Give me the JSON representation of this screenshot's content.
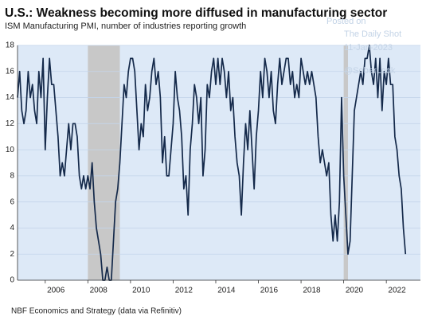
{
  "chart_data": {
    "type": "line",
    "title": "U.S.: Weakness becoming more diffused in manufacturing sector",
    "subtitle": "ISM Manufacturing PMI, number of industries reporting growth",
    "source": "NBF Economics and Strategy (data via Refinitiv)",
    "watermark": [
      "Posted on",
      "The Daily Shot",
      "11-Jan-2023",
      "@SoberLook"
    ],
    "color": "#14294a",
    "shade_color": "#c8c8c8",
    "shaded_periods": [
      [
        2008.0,
        2009.5
      ],
      [
        2020.0,
        2020.2
      ]
    ],
    "x": [
      2004.7,
      2004.8,
      2004.9,
      2005.0,
      2005.1,
      2005.2,
      2005.3,
      2005.4,
      2005.5,
      2005.6,
      2005.7,
      2005.8,
      2005.9,
      2006.0,
      2006.1,
      2006.2,
      2006.3,
      2006.4,
      2006.5,
      2006.6,
      2006.7,
      2006.8,
      2006.9,
      2007.0,
      2007.1,
      2007.2,
      2007.3,
      2007.4,
      2007.5,
      2007.6,
      2007.7,
      2007.8,
      2007.9,
      2008.0,
      2008.1,
      2008.2,
      2008.3,
      2008.4,
      2008.5,
      2008.6,
      2008.7,
      2008.8,
      2008.9,
      2009.0,
      2009.1,
      2009.2,
      2009.3,
      2009.4,
      2009.5,
      2009.6,
      2009.7,
      2009.8,
      2009.9,
      2010.0,
      2010.1,
      2010.2,
      2010.3,
      2010.4,
      2010.5,
      2010.6,
      2010.7,
      2010.8,
      2010.9,
      2011.0,
      2011.1,
      2011.2,
      2011.3,
      2011.4,
      2011.5,
      2011.6,
      2011.7,
      2011.8,
      2011.9,
      2012.0,
      2012.1,
      2012.2,
      2012.3,
      2012.4,
      2012.5,
      2012.6,
      2012.7,
      2012.8,
      2012.9,
      2013.0,
      2013.1,
      2013.2,
      2013.3,
      2013.4,
      2013.5,
      2013.6,
      2013.7,
      2013.8,
      2013.9,
      2014.0,
      2014.1,
      2014.2,
      2014.3,
      2014.4,
      2014.5,
      2014.6,
      2014.7,
      2014.8,
      2014.9,
      2015.0,
      2015.1,
      2015.2,
      2015.3,
      2015.4,
      2015.5,
      2015.6,
      2015.7,
      2015.8,
      2015.9,
      2016.0,
      2016.1,
      2016.2,
      2016.3,
      2016.4,
      2016.5,
      2016.6,
      2016.7,
      2016.8,
      2016.9,
      2017.0,
      2017.1,
      2017.2,
      2017.3,
      2017.4,
      2017.5,
      2017.6,
      2017.7,
      2017.8,
      2017.9,
      2018.0,
      2018.1,
      2018.2,
      2018.3,
      2018.4,
      2018.5,
      2018.6,
      2018.7,
      2018.8,
      2018.9,
      2019.0,
      2019.1,
      2019.2,
      2019.3,
      2019.4,
      2019.5,
      2019.6,
      2019.7,
      2019.8,
      2019.9,
      2020.0,
      2020.1,
      2020.2,
      2020.3,
      2020.4,
      2020.5,
      2020.6,
      2020.7,
      2020.8,
      2020.9,
      2021.0,
      2021.1,
      2021.2,
      2021.3,
      2021.4,
      2021.5,
      2021.6,
      2021.7,
      2021.8,
      2021.9,
      2022.0,
      2022.1,
      2022.2,
      2022.3,
      2022.4,
      2022.5,
      2022.6,
      2022.7,
      2022.8,
      2022.9
    ],
    "values": [
      14,
      16,
      13,
      12,
      13,
      16,
      14,
      15,
      13,
      12,
      16,
      14,
      17,
      10,
      14,
      17,
      15,
      15,
      13,
      11,
      8,
      9,
      8,
      10,
      12,
      10,
      12,
      12,
      11,
      8,
      7,
      8,
      7,
      8,
      7,
      9,
      6,
      4,
      3,
      2,
      0,
      0,
      1,
      0,
      0,
      3,
      6,
      7,
      9,
      12,
      15,
      14,
      16,
      17,
      17,
      16,
      13,
      10,
      12,
      11,
      15,
      13,
      14,
      16,
      17,
      15,
      16,
      14,
      9,
      11,
      8,
      8,
      10,
      12,
      16,
      14,
      13,
      11,
      7,
      8,
      5,
      10,
      12,
      15,
      14,
      12,
      14,
      8,
      10,
      15,
      14,
      16,
      17,
      15,
      17,
      15,
      17,
      16,
      14,
      16,
      13,
      14,
      11,
      9,
      8,
      5,
      9,
      12,
      10,
      13,
      10,
      7,
      11,
      13,
      16,
      14,
      17,
      16,
      14,
      16,
      13,
      12,
      15,
      17,
      15,
      16,
      17,
      17,
      15,
      16,
      14,
      15,
      14,
      17,
      16,
      15,
      16,
      15,
      16,
      15,
      14,
      11,
      9,
      10,
      9,
      8,
      9,
      5,
      3,
      5,
      3,
      6,
      14,
      8,
      5,
      2,
      3,
      8,
      13,
      14,
      15,
      16,
      15,
      17,
      17,
      18,
      16,
      15,
      17,
      14,
      17,
      13,
      16,
      15,
      17,
      15,
      15,
      11,
      10,
      8,
      7,
      4,
      2
    ],
    "xlim": [
      2004.7,
      2023.6
    ],
    "xticks": [
      2006,
      2008,
      2010,
      2012,
      2014,
      2016,
      2018,
      2020,
      2022
    ],
    "ylim": [
      0,
      18
    ],
    "yticks": [
      0,
      2,
      4,
      6,
      8,
      10,
      12,
      14,
      16,
      18
    ],
    "grid": true
  }
}
